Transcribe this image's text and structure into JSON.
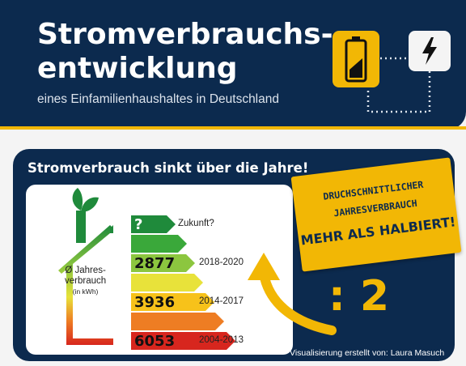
{
  "header": {
    "title_line1": "Stromverbrauchs-",
    "title_line2": "entwicklung",
    "subtitle": "eines Einfamilienhaushaltes in Deutschland",
    "battery_icon": "battery-icon",
    "plug_icon": "lightning-icon"
  },
  "panel": {
    "title": "Stromverbrauch sinkt über die Jahre!",
    "axis_label_line1": "Ø Jahres-",
    "axis_label_line2": "verbrauch",
    "axis_unit": "(in  kWh)",
    "credit": "Visualisierung erstellt von: Laura Masuch"
  },
  "note": {
    "line1": "DRUCHSCHNITTLICHER",
    "line2": "JAHRESVERBRAUCH",
    "line3": "MEHR ALS HALBIERT!",
    "factor": ": 2"
  },
  "colors": {
    "navy": "#0c2a4e",
    "yellow": "#f2b705"
  },
  "chart_data": {
    "type": "bar",
    "categories": [
      "Zukunft?",
      "",
      "2018-2020",
      "",
      "2014-2017",
      "",
      "2004-2013"
    ],
    "bar_labels": [
      "?",
      "",
      "2877",
      "",
      "3936",
      "",
      "6053"
    ],
    "values": [
      null,
      null,
      2877,
      null,
      3936,
      null,
      6053
    ],
    "bar_colors": [
      "#1f8a3b",
      "#3aa83a",
      "#8cc63f",
      "#e8e23a",
      "#f7c21a",
      "#ee7d23",
      "#d7261e"
    ],
    "xlabel": "",
    "ylabel": "Ø Jahresverbrauch (in kWh)"
  }
}
